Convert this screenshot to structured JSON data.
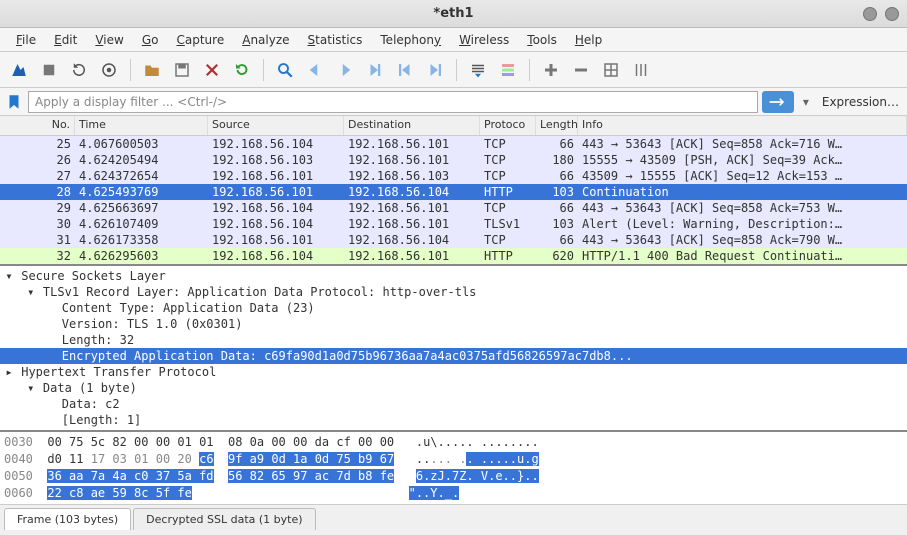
{
  "window": {
    "title": "*eth1"
  },
  "menu": [
    "File",
    "Edit",
    "View",
    "Go",
    "Capture",
    "Analyze",
    "Statistics",
    "Telephony",
    "Wireless",
    "Tools",
    "Help"
  ],
  "filter": {
    "placeholder": "Apply a display filter ... <Ctrl-/>",
    "expression": "Expression…"
  },
  "columns": {
    "no": "No.",
    "time": "Time",
    "src": "Source",
    "dst": "Destination",
    "proto": "Protoco",
    "len": "Length",
    "info": "Info"
  },
  "packets": [
    {
      "no": "25",
      "time": "4.067600503",
      "src": "192.168.56.104",
      "dst": "192.168.56.101",
      "proto": "TCP",
      "len": "66",
      "info": "443 → 53643 [ACK] Seq=858 Ack=716 W…",
      "cls": "tcp"
    },
    {
      "no": "26",
      "time": "4.624205494",
      "src": "192.168.56.103",
      "dst": "192.168.56.101",
      "proto": "TCP",
      "len": "180",
      "info": "15555 → 43509 [PSH, ACK] Seq=39 Ack…",
      "cls": "tcp"
    },
    {
      "no": "27",
      "time": "4.624372654",
      "src": "192.168.56.101",
      "dst": "192.168.56.103",
      "proto": "TCP",
      "len": "66",
      "info": "43509 → 15555 [ACK] Seq=12 Ack=153 …",
      "cls": "tcp"
    },
    {
      "no": "28",
      "time": "4.625493769",
      "src": "192.168.56.101",
      "dst": "192.168.56.104",
      "proto": "HTTP",
      "len": "103",
      "info": "Continuation",
      "cls": "sel"
    },
    {
      "no": "29",
      "time": "4.625663697",
      "src": "192.168.56.104",
      "dst": "192.168.56.101",
      "proto": "TCP",
      "len": "66",
      "info": "443 → 53643 [ACK] Seq=858 Ack=753 W…",
      "cls": "tcp"
    },
    {
      "no": "30",
      "time": "4.626107409",
      "src": "192.168.56.104",
      "dst": "192.168.56.101",
      "proto": "TLSv1",
      "len": "103",
      "info": "Alert (Level: Warning, Description:…",
      "cls": "tls"
    },
    {
      "no": "31",
      "time": "4.626173358",
      "src": "192.168.56.101",
      "dst": "192.168.56.104",
      "proto": "TCP",
      "len": "66",
      "info": "443 → 53643 [ACK] Seq=858 Ack=790 W…",
      "cls": "tcp"
    },
    {
      "no": "32",
      "time": "4.626295603",
      "src": "192.168.56.104",
      "dst": "192.168.56.101",
      "proto": "HTTP",
      "len": "620",
      "info": "HTTP/1.1 400 Bad Request Continuati…",
      "cls": "http"
    }
  ],
  "details": {
    "l1": "Secure Sockets Layer",
    "l2": "TLSv1 Record Layer: Application Data Protocol: http-over-tls",
    "l3": "Content Type: Application Data (23)",
    "l4": "Version: TLS 1.0 (0x0301)",
    "l5": "Length: 32",
    "l6": "Encrypted Application Data: c69fa90d1a0d75b96736aa7a4ac0375afd56826597ac7db8...",
    "l7": "Hypertext Transfer Protocol",
    "l8": "Data (1 byte)",
    "l9": "Data: c2",
    "l10": "[Length: 1]"
  },
  "hex": {
    "r1": {
      "off": "0030",
      "a": "00 75 5c 82 00 00 01 01",
      "b": "08 0a 00 00 da cf 00 00",
      "ascii": ".u\\..... ........"
    },
    "r2": {
      "off": "0040",
      "a1": "d0 11 ",
      "a2": "17 03 01 00 20 ",
      "a3": "c6",
      "b": "9f a9 0d 1a 0d 75 b9 67",
      "ascii1": "..",
      "ascii2": "... .",
      "ascii3": ".",
      "ascii4": " .....u.g"
    },
    "r3": {
      "off": "0050",
      "a": "36 aa 7a 4a c0 37 5a fd",
      "b": "56 82 65 97 ac 7d b8 fe",
      "ascii": "6.zJ.7Z. V.e..}.."
    },
    "r4": {
      "off": "0060",
      "a": "22 c8 ae 59 8c 5f fe",
      "ascii": "\"..Y._."
    }
  },
  "tabs": {
    "t1": "Frame (103 bytes)",
    "t2": "Decrypted SSL data (1 byte)"
  },
  "colors": {
    "selected_bg": "#3874d8",
    "tcp_bg": "#e8e8ff",
    "http_bg": "#e4ffc7"
  }
}
